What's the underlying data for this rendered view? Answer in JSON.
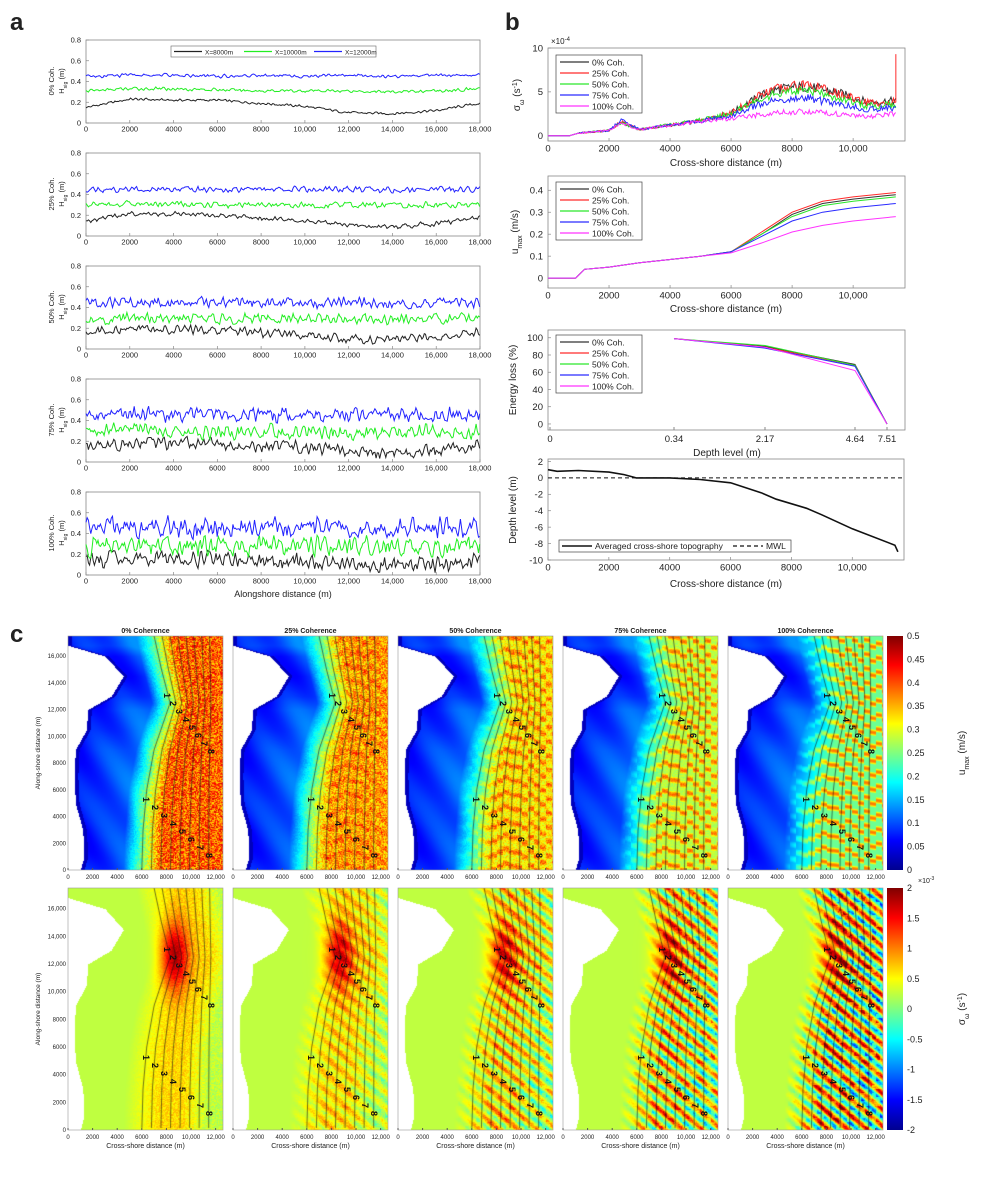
{
  "panel_labels": {
    "a": "a",
    "b": "b",
    "c": "c"
  },
  "chart_data": {
    "panel_a": {
      "type": "line",
      "xlabel": "Alongshore distance (m)",
      "xlim": [
        0,
        18000
      ],
      "ylim": [
        0,
        0.8
      ],
      "xticks": [
        0,
        2000,
        4000,
        6000,
        8000,
        10000,
        12000,
        14000,
        16000,
        18000
      ],
      "xtick_labels": [
        "0",
        "2000",
        "4000",
        "6000",
        "8000",
        "10,000",
        "12,000",
        "14,000",
        "16,000",
        "18,000"
      ],
      "yticks": [
        0,
        0.2,
        0.4,
        0.6,
        0.8
      ],
      "ytick_labels": [
        "0",
        "0.2",
        "0.4",
        "0.6",
        "0.8"
      ],
      "ylabel": {
        "main": "H",
        "sub": "sig",
        "unit": " (m)"
      },
      "legend": [
        "X=8000m",
        "X=10000m",
        "X=12000m"
      ],
      "legend_placement": "top-center",
      "colors": [
        "#222222",
        "#22ee22",
        "#2222ff"
      ],
      "x": [
        0,
        2000,
        4000,
        6000,
        8000,
        10000,
        12000,
        14000,
        16000,
        18000
      ],
      "subplots": [
        {
          "coherence_label": "0% Coh.",
          "fluctuation": 0.012,
          "series": [
            [
              0.15,
              0.23,
              0.22,
              0.22,
              0.19,
              0.16,
              0.1,
              0.09,
              0.12,
              0.19
            ],
            [
              0.31,
              0.33,
              0.33,
              0.32,
              0.31,
              0.31,
              0.31,
              0.3,
              0.31,
              0.33
            ],
            [
              0.45,
              0.46,
              0.46,
              0.45,
              0.46,
              0.45,
              0.46,
              0.45,
              0.46,
              0.46
            ]
          ]
        },
        {
          "coherence_label": "25% Coh.",
          "fluctuation": 0.022,
          "series": [
            [
              0.15,
              0.21,
              0.21,
              0.2,
              0.17,
              0.15,
              0.1,
              0.09,
              0.12,
              0.18
            ],
            [
              0.3,
              0.31,
              0.31,
              0.3,
              0.3,
              0.3,
              0.3,
              0.3,
              0.3,
              0.31
            ],
            [
              0.44,
              0.45,
              0.45,
              0.45,
              0.45,
              0.45,
              0.45,
              0.44,
              0.45,
              0.45
            ]
          ]
        },
        {
          "coherence_label": "50% Coh.",
          "fluctuation": 0.04,
          "series": [
            [
              0.15,
              0.2,
              0.19,
              0.18,
              0.16,
              0.14,
              0.1,
              0.09,
              0.12,
              0.17
            ],
            [
              0.29,
              0.3,
              0.3,
              0.29,
              0.29,
              0.29,
              0.29,
              0.28,
              0.29,
              0.3
            ],
            [
              0.44,
              0.45,
              0.45,
              0.45,
              0.45,
              0.44,
              0.45,
              0.44,
              0.45,
              0.45
            ]
          ]
        },
        {
          "coherence_label": "75% Coh.",
          "fluctuation": 0.055,
          "series": [
            [
              0.15,
              0.18,
              0.18,
              0.17,
              0.15,
              0.14,
              0.1,
              0.09,
              0.11,
              0.16
            ],
            [
              0.29,
              0.3,
              0.3,
              0.29,
              0.29,
              0.29,
              0.29,
              0.28,
              0.29,
              0.3
            ],
            [
              0.45,
              0.46,
              0.46,
              0.46,
              0.46,
              0.45,
              0.46,
              0.45,
              0.46,
              0.46
            ]
          ]
        },
        {
          "coherence_label": "100% Coh.",
          "fluctuation": 0.075,
          "series": [
            [
              0.14,
              0.16,
              0.16,
              0.15,
              0.14,
              0.13,
              0.1,
              0.09,
              0.1,
              0.14
            ],
            [
              0.28,
              0.29,
              0.29,
              0.28,
              0.28,
              0.28,
              0.28,
              0.28,
              0.28,
              0.29
            ],
            [
              0.45,
              0.46,
              0.46,
              0.46,
              0.46,
              0.46,
              0.46,
              0.45,
              0.46,
              0.46
            ]
          ]
        }
      ]
    },
    "panel_b": {
      "legend": [
        "0% Coh.",
        "25% Coh.",
        "50% Coh.",
        "75% Coh.",
        "100% Coh."
      ],
      "legend_placement": "top-left",
      "colors": [
        "#333333",
        "#ff2a2a",
        "#2ae62a",
        "#2a2aff",
        "#ff33ff"
      ],
      "vorticity": {
        "type": "line",
        "ylabel": {
          "main": "σ",
          "sub": "ω",
          "unit": " (s",
          "sup": "-1",
          "close": ")"
        },
        "exponent_label": "×10",
        "exponent": "-4",
        "xlabel": "Cross-shore distance (m)",
        "xlim": [
          0,
          11700
        ],
        "ylim": [
          -0.6,
          10
        ],
        "xticks": [
          0,
          2000,
          4000,
          6000,
          8000,
          10000
        ],
        "xtick_labels": [
          "0",
          "2000",
          "4000",
          "6000",
          "8000",
          "10,000"
        ],
        "yticks": [
          0,
          5,
          10
        ],
        "ytick_labels": [
          "0",
          "5",
          "10"
        ],
        "x": [
          0,
          700,
          1000,
          2000,
          2400,
          3000,
          4000,
          5000,
          6000,
          7000,
          7400,
          8000,
          8500,
          9500,
          10500,
          11400
        ],
        "series": [
          [
            0,
            0,
            0.3,
            0.6,
            1.5,
            0.7,
            1.2,
            1.7,
            2.6,
            4.6,
            5.2,
            5.5,
            5.6,
            4.9,
            3.8,
            4.0
          ],
          [
            0,
            0,
            0.3,
            0.6,
            1.6,
            0.7,
            1.2,
            1.7,
            2.6,
            4.7,
            5.3,
            5.7,
            5.8,
            4.8,
            3.7,
            3.9
          ],
          [
            0,
            0,
            0.3,
            0.6,
            1.5,
            0.7,
            1.3,
            1.8,
            2.5,
            4.3,
            4.8,
            5.0,
            5.1,
            4.3,
            3.4,
            3.5
          ],
          [
            0,
            0,
            0.3,
            0.6,
            1.8,
            0.7,
            1.2,
            1.7,
            2.3,
            3.7,
            4.0,
            4.2,
            4.3,
            3.6,
            3.0,
            3.2
          ],
          [
            0,
            0,
            0.3,
            0.6,
            1.5,
            0.7,
            1.2,
            1.6,
            2.0,
            2.4,
            2.6,
            2.7,
            2.8,
            2.5,
            2.1,
            2.6
          ]
        ]
      },
      "umax": {
        "type": "line",
        "ylabel": {
          "main": "u",
          "sub": "max",
          "unit": " (m/s)"
        },
        "xlabel": "Cross-shore distance (m)",
        "xlim": [
          0,
          11700
        ],
        "ylim": [
          -0.045,
          0.465
        ],
        "xticks": [
          0,
          2000,
          4000,
          6000,
          8000,
          10000
        ],
        "xtick_labels": [
          "0",
          "2000",
          "4000",
          "6000",
          "8000",
          "10,000"
        ],
        "yticks": [
          0,
          0.1,
          0.2,
          0.3,
          0.4
        ],
        "ytick_labels": [
          "0",
          "0.1",
          "0.2",
          "0.3",
          "0.4"
        ],
        "x": [
          0,
          900,
          1200,
          2000,
          3000,
          4000,
          5000,
          6000,
          7000,
          8000,
          9000,
          10000,
          11400
        ],
        "series": [
          [
            0,
            0,
            0.04,
            0.05,
            0.07,
            0.085,
            0.1,
            0.12,
            0.2,
            0.29,
            0.34,
            0.36,
            0.38
          ],
          [
            0,
            0,
            0.04,
            0.05,
            0.07,
            0.085,
            0.1,
            0.12,
            0.21,
            0.3,
            0.35,
            0.37,
            0.39
          ],
          [
            0,
            0,
            0.04,
            0.05,
            0.07,
            0.085,
            0.1,
            0.12,
            0.2,
            0.28,
            0.33,
            0.35,
            0.37
          ],
          [
            0,
            0,
            0.04,
            0.05,
            0.07,
            0.085,
            0.1,
            0.12,
            0.19,
            0.26,
            0.3,
            0.32,
            0.34
          ],
          [
            0,
            0,
            0.04,
            0.05,
            0.07,
            0.085,
            0.1,
            0.115,
            0.16,
            0.21,
            0.24,
            0.26,
            0.28
          ]
        ]
      },
      "energy_loss": {
        "type": "line",
        "ylabel": "Energy loss (%)",
        "xlabel": "Depth level (m)",
        "ylim": [
          -7,
          109
        ],
        "xtick_labels": [
          "0",
          "0.34",
          "2.17",
          "4.64",
          "7.51"
        ],
        "yticks": [
          0,
          20,
          40,
          60,
          80,
          100
        ],
        "ytick_labels": [
          "0",
          "20",
          "40",
          "60",
          "80",
          "100"
        ],
        "x": [
          0.34,
          2.17,
          4.64,
          7.51
        ],
        "series": [
          [
            99,
            90,
            69,
            0
          ],
          [
            99,
            89,
            68,
            0
          ],
          [
            99,
            91,
            68,
            0
          ],
          [
            99,
            88,
            67,
            0
          ],
          [
            99,
            89,
            62,
            0
          ]
        ]
      },
      "topography": {
        "type": "line",
        "ylabel": "Depth level (m)",
        "xlabel": "Cross-shore distance (m)",
        "xlim": [
          0,
          11700
        ],
        "ylim": [
          -10,
          2.3
        ],
        "xticks": [
          0,
          2000,
          4000,
          6000,
          8000,
          10000
        ],
        "xtick_labels": [
          "0",
          "2000",
          "4000",
          "6000",
          "8000",
          "10,000"
        ],
        "yticks": [
          -10,
          -8,
          -6,
          -4,
          -2,
          0,
          2
        ],
        "ytick_labels": [
          "-10",
          "-8",
          "-6",
          "-4",
          "-2",
          "0",
          "2"
        ],
        "legend": [
          "Averaged cross-shore topography",
          "MWL"
        ],
        "legend_placement": "bottom-left",
        "x": [
          0,
          300,
          1000,
          2000,
          2500,
          2900,
          4000,
          5000,
          6000,
          7000,
          7500,
          8500,
          9000,
          10000,
          11400,
          11500
        ],
        "series": [
          [
            1,
            0.8,
            0.9,
            0.7,
            0.4,
            0,
            0,
            -0.2,
            -0.6,
            -1.8,
            -2.6,
            -3.7,
            -4.5,
            -6.2,
            -8.2,
            -9
          ]
        ],
        "mwl": 0
      }
    },
    "panel_c": {
      "type": "heatmap",
      "titles": [
        "0% Coherence",
        "25% Coherence",
        "50% Coherence",
        "75% Coherence",
        "100% Coherence"
      ],
      "xlabel": "Cross-shore distance (m)",
      "ylabel": "Along-shore distance (m)",
      "xlim": [
        0,
        12600
      ],
      "ylim": [
        0,
        17500
      ],
      "xticks": [
        0,
        2000,
        4000,
        6000,
        8000,
        10000,
        12000
      ],
      "xtick_labels": [
        "0",
        "2000",
        "4000",
        "6000",
        "8000",
        "10,000",
        "12,000"
      ],
      "yticks": [
        0,
        2000,
        4000,
        6000,
        8000,
        10000,
        12000,
        14000,
        16000
      ],
      "ytick_labels": [
        "0",
        "2000",
        "4000",
        "6000",
        "8000",
        "10,000",
        "12,000",
        "14,000",
        "16,000"
      ],
      "contour_labels": [
        "1",
        "2",
        "3",
        "4",
        "5",
        "6",
        "7",
        "8"
      ],
      "coherence": [
        0,
        25,
        50,
        75,
        100
      ],
      "umax_colorbar": {
        "label": {
          "main": "u",
          "sub": "max",
          "unit": " (m/s)"
        },
        "range": [
          0,
          0.5
        ],
        "ticks": [
          "0",
          "0.05",
          "0.1",
          "0.15",
          "0.2",
          "0.25",
          "0.3",
          "0.35",
          "0.4",
          "0.45",
          "0.5"
        ]
      },
      "vorticity_colorbar": {
        "label": {
          "main": "σ",
          "sub": "ω",
          "unit": " (s",
          "sup": "-1",
          "close": ")"
        },
        "range": [
          -2,
          2
        ],
        "exponent_label": "×10",
        "exponent": "-3",
        "ticks": [
          "-2",
          "-1.5",
          "-1",
          "-0.5",
          "0",
          "0.5",
          "1",
          "1.5",
          "2"
        ]
      }
    }
  }
}
